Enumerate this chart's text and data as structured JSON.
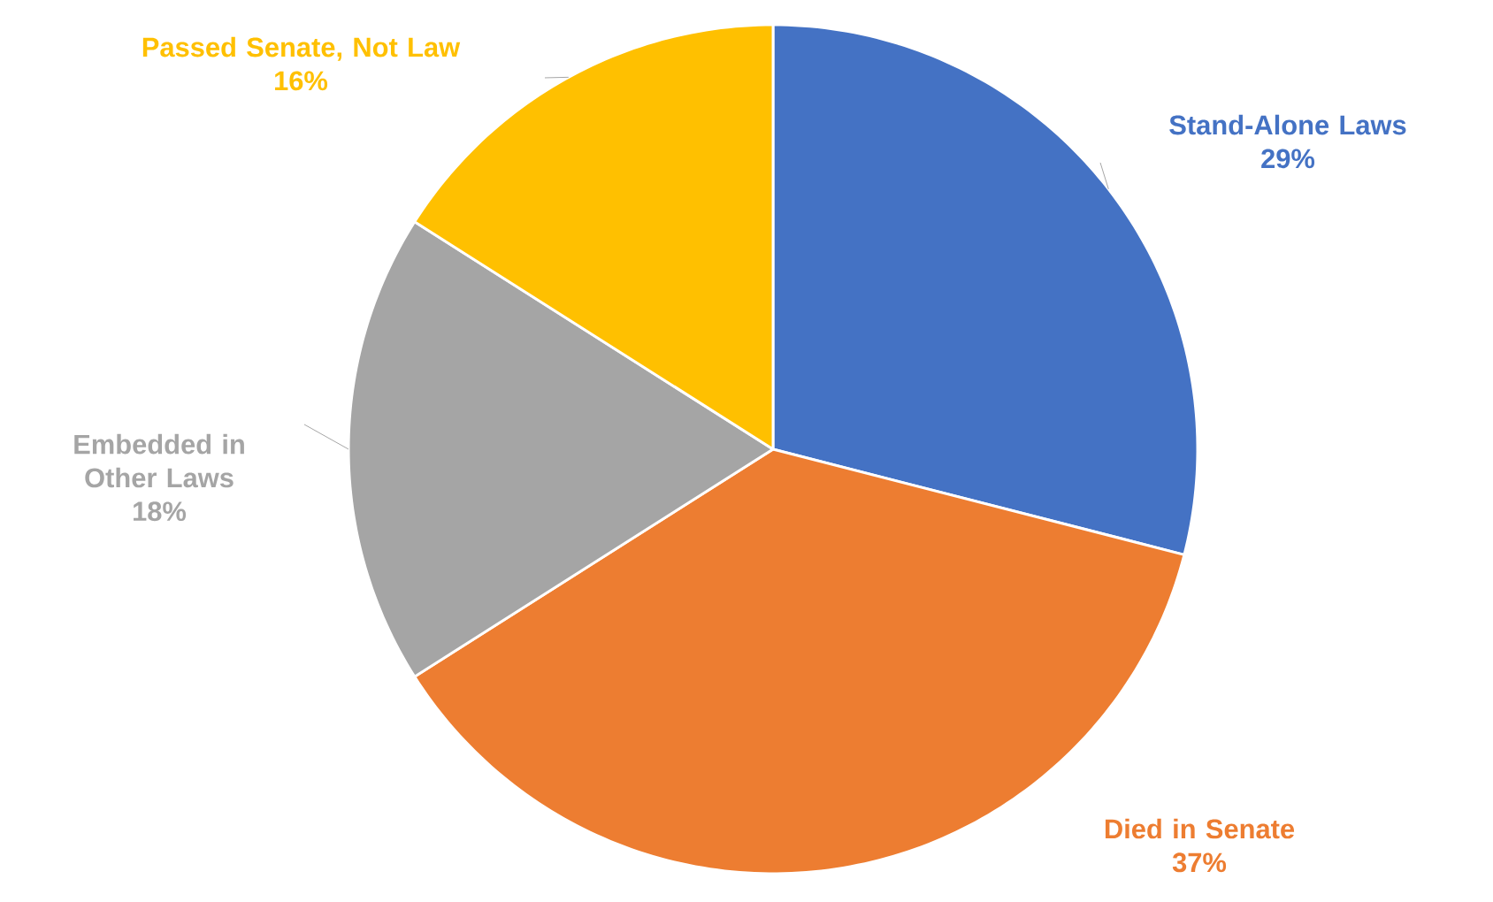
{
  "chart_data": {
    "type": "pie",
    "categories": [
      "Stand-Alone Laws",
      "Died in Senate",
      "Embedded in Other Laws",
      "Passed Senate, Not Law"
    ],
    "values": [
      29,
      37,
      18,
      16
    ],
    "value_labels": [
      "29%",
      "37%",
      "18%",
      "16%"
    ],
    "colors": [
      "#4472c4",
      "#ed7d31",
      "#a5a5a5",
      "#ffc000"
    ]
  }
}
